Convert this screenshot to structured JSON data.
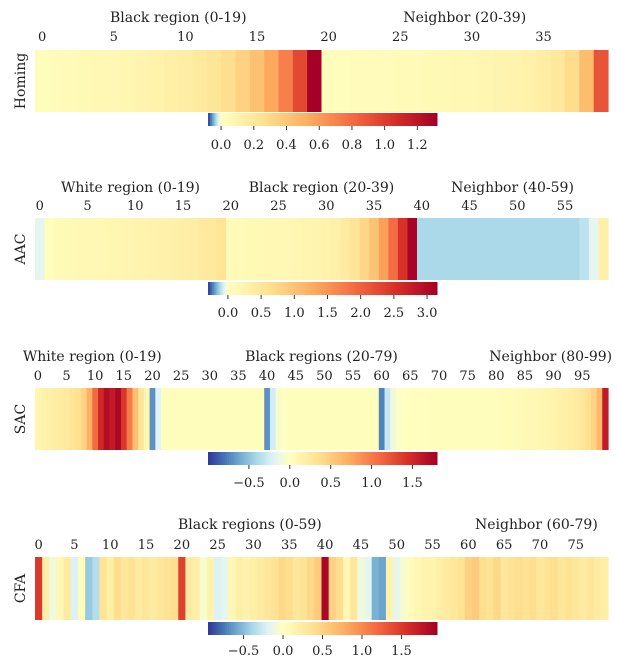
{
  "chart_data": [
    {
      "type": "heatmap",
      "ylabel": "Homing",
      "region_labels": [
        {
          "text": "Black region (0-19)",
          "center": 9.5
        },
        {
          "text": "Neighbor (20-39)",
          "center": 29.5
        }
      ],
      "tick_step": 5,
      "cbar": {
        "vmin": -0.08,
        "vmax": 1.32,
        "ticks": [
          0.0,
          0.2,
          0.4,
          0.6,
          0.8,
          1.0,
          1.2
        ],
        "tick_labels": [
          "0.0",
          "0.2",
          "0.4",
          "0.6",
          "0.8",
          "1.0",
          "1.2"
        ]
      },
      "values": [
        0.02,
        0.03,
        0.04,
        0.05,
        0.06,
        0.07,
        0.08,
        0.09,
        0.11,
        0.13,
        0.15,
        0.18,
        0.22,
        0.27,
        0.34,
        0.43,
        0.55,
        0.72,
        0.95,
        1.32,
        0.02,
        0.02,
        0.03,
        0.03,
        0.03,
        0.04,
        0.04,
        0.05,
        0.05,
        0.06,
        0.07,
        0.08,
        0.09,
        0.1,
        0.12,
        0.15,
        0.2,
        0.28,
        0.45,
        0.9
      ]
    },
    {
      "type": "heatmap",
      "ylabel": "AAC",
      "region_labels": [
        {
          "text": "White region (0-19)",
          "center": 9.5
        },
        {
          "text": "Black region (20-39)",
          "center": 29.5
        },
        {
          "text": "Neighbor (40-59)",
          "center": 49.5
        }
      ],
      "tick_step": 5,
      "cbar": {
        "vmin": -0.3,
        "vmax": 3.15,
        "ticks": [
          0.0,
          0.5,
          1.0,
          1.5,
          2.0,
          2.5,
          3.0
        ],
        "tick_labels": [
          "0.0",
          "0.5",
          "1.0",
          "1.5",
          "2.0",
          "2.5",
          "3.0"
        ]
      },
      "values": [
        -0.05,
        0.05,
        0.1,
        0.12,
        0.14,
        0.15,
        0.16,
        0.17,
        0.18,
        0.2,
        0.22,
        0.24,
        0.26,
        0.28,
        0.3,
        0.33,
        0.36,
        0.4,
        0.45,
        0.55,
        0.1,
        0.11,
        0.12,
        0.13,
        0.14,
        0.15,
        0.16,
        0.18,
        0.2,
        0.22,
        0.25,
        0.3,
        0.4,
        0.55,
        0.75,
        1.0,
        1.4,
        1.9,
        2.5,
        3.1,
        -0.12,
        -0.12,
        -0.12,
        -0.12,
        -0.12,
        -0.12,
        -0.12,
        -0.12,
        -0.12,
        -0.12,
        -0.12,
        -0.12,
        -0.12,
        -0.12,
        -0.12,
        -0.12,
        -0.12,
        -0.1,
        -0.05,
        0.3
      ]
    },
    {
      "type": "heatmap",
      "ylabel": "SAC",
      "region_labels": [
        {
          "text": "White region (0-19)",
          "center": 9.5
        },
        {
          "text": "Black regions (20-79)",
          "center": 49.5
        },
        {
          "text": "Neighbor (80-99)",
          "center": 89.5
        }
      ],
      "tick_step": 5,
      "cbar": {
        "vmin": -1.0,
        "vmax": 1.8,
        "ticks": [
          -0.5,
          0.0,
          0.5,
          1.0,
          1.5
        ],
        "tick_labels": [
          "−0.5",
          "0.0",
          "0.5",
          "1.0",
          "1.5"
        ]
      },
      "values": [
        0.1,
        0.15,
        0.18,
        0.2,
        0.22,
        0.25,
        0.3,
        0.35,
        0.45,
        0.7,
        1.1,
        1.5,
        1.7,
        1.6,
        1.75,
        1.4,
        1.0,
        0.6,
        0.3,
        0.1,
        -0.7,
        -0.2,
        0.02,
        0.02,
        0.02,
        0.02,
        0.02,
        0.02,
        0.02,
        0.02,
        0.02,
        0.02,
        0.02,
        0.02,
        0.02,
        0.02,
        0.02,
        0.02,
        0.02,
        0.02,
        -0.7,
        -0.25,
        -0.05,
        0.0,
        0.02,
        0.02,
        0.02,
        0.02,
        0.02,
        0.02,
        0.02,
        0.02,
        0.02,
        0.02,
        0.02,
        0.02,
        0.02,
        0.02,
        0.02,
        0.02,
        -0.75,
        -0.3,
        -0.1,
        -0.02,
        0.0,
        0.0,
        0.01,
        0.01,
        0.01,
        0.02,
        0.02,
        0.02,
        0.02,
        0.02,
        0.02,
        0.02,
        0.02,
        0.02,
        0.02,
        0.02,
        0.02,
        0.03,
        0.04,
        0.05,
        0.06,
        0.07,
        0.08,
        0.09,
        0.1,
        0.12,
        0.14,
        0.16,
        0.18,
        0.2,
        0.24,
        0.28,
        0.34,
        0.45,
        0.65,
        1.6
      ]
    },
    {
      "type": "heatmap",
      "ylabel": "CFA",
      "region_labels": [
        {
          "text": "Black regions (0-59)",
          "center": 29.5
        },
        {
          "text": "Neighbor (60-79)",
          "center": 69.5
        }
      ],
      "tick_step": 5,
      "cbar": {
        "vmin": -0.95,
        "vmax": 1.95,
        "ticks": [
          -0.5,
          0.0,
          0.5,
          1.0,
          1.5
        ],
        "tick_labels": [
          "−0.5",
          "0.0",
          "0.5",
          "1.0",
          "1.5"
        ]
      },
      "values": [
        1.5,
        0.2,
        -0.1,
        0.1,
        0.25,
        -0.2,
        0.05,
        -0.45,
        -0.35,
        0.35,
        0.2,
        0.4,
        0.3,
        0.35,
        0.25,
        0.3,
        0.25,
        0.3,
        0.35,
        0.4,
        1.45,
        0.25,
        0.2,
        -0.05,
        0.15,
        -0.2,
        -0.15,
        0.1,
        0.2,
        0.15,
        0.2,
        0.25,
        0.3,
        0.35,
        0.45,
        0.4,
        0.3,
        0.35,
        0.45,
        0.55,
        1.9,
        0.5,
        0.4,
        0.1,
        0.3,
        -0.1,
        -0.15,
        -0.55,
        -0.6,
        0.15,
        -0.15,
        -0.05,
        0.05,
        0.1,
        0.15,
        0.15,
        0.2,
        0.25,
        0.3,
        0.35,
        0.5,
        0.55,
        0.4,
        0.35,
        0.45,
        0.3,
        0.35,
        0.4,
        0.35,
        0.4,
        0.3,
        0.35,
        0.4,
        0.3,
        0.35,
        0.3,
        0.25,
        0.3,
        0.25,
        0.2
      ]
    }
  ]
}
